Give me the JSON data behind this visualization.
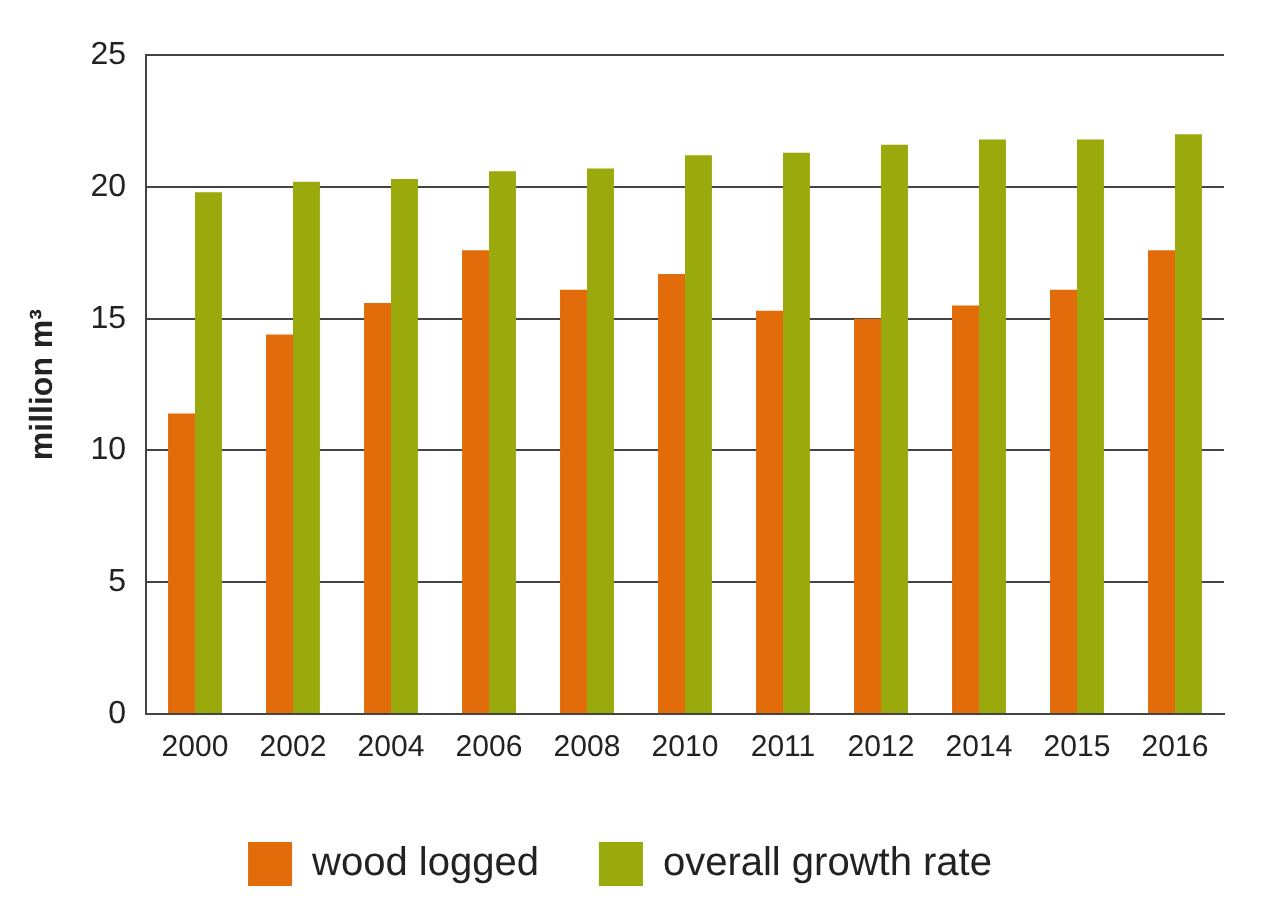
{
  "chart_data": {
    "type": "bar",
    "ylabel": "million m³",
    "categories": [
      "2000",
      "2002",
      "2004",
      "2006",
      "2008",
      "2010",
      "2011",
      "2012",
      "2014",
      "2015",
      "2016"
    ],
    "series": [
      {
        "name": "wood logged",
        "color": "#e36c0a",
        "values": [
          11.4,
          14.4,
          15.6,
          17.6,
          16.1,
          16.7,
          15.3,
          15.0,
          15.5,
          16.1,
          17.6
        ]
      },
      {
        "name": "overall growth rate",
        "color": "#9aaa0c",
        "values": [
          19.8,
          20.2,
          20.3,
          20.6,
          20.7,
          21.2,
          21.3,
          21.6,
          21.8,
          21.8,
          22.0
        ]
      }
    ],
    "ylim": [
      0,
      25
    ],
    "yticks": [
      0,
      5,
      10,
      15,
      20,
      25
    ],
    "grid": "y",
    "legend": "bottom"
  }
}
